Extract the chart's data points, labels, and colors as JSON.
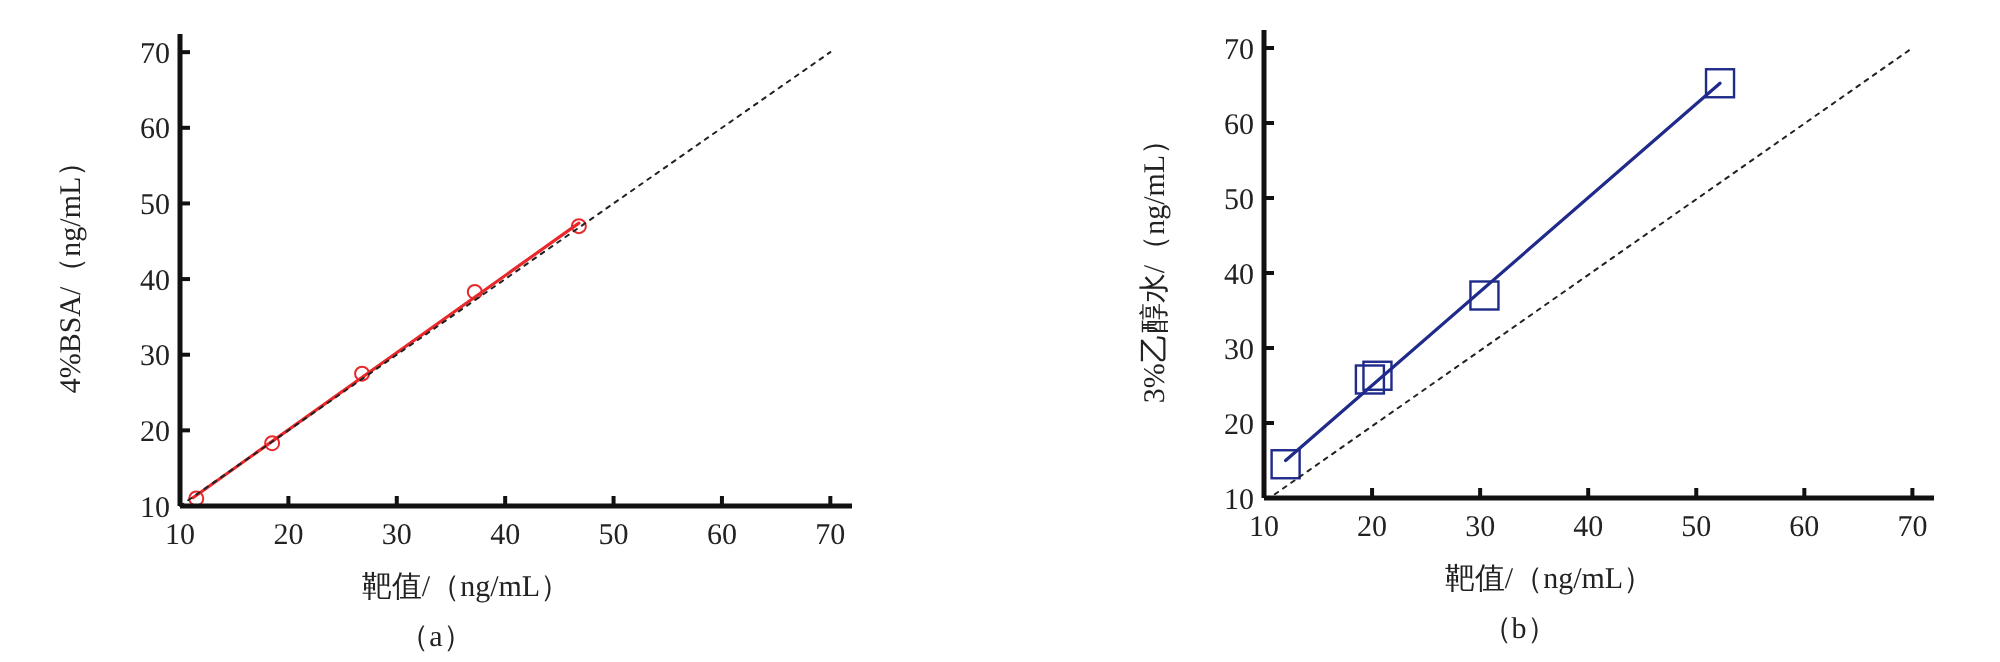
{
  "chart_data": [
    {
      "type": "scatter",
      "title": "（a）",
      "xlabel": "靶值/（ng/mL）",
      "ylabel": "4%BSA/（ng/mL）",
      "xlim": [
        10,
        72
      ],
      "ylim": [
        10,
        72.4
      ],
      "xticks": [
        10,
        20,
        30,
        40,
        50,
        60,
        70
      ],
      "yticks": [
        10,
        20,
        30,
        40,
        50,
        60,
        70
      ],
      "grid": false,
      "series": [
        {
          "color": "#e8282a",
          "marker": "circle",
          "x": [
            11.5,
            18.5,
            26.8,
            37.2,
            46.8
          ],
          "values": [
            11,
            18.3,
            27.5,
            38.3,
            47
          ]
        },
        {
          "type": "line",
          "color": "#e8282a",
          "line_style": "solid",
          "x": [
            11.2,
            46.8
          ],
          "values": [
            11.1,
            47.4
          ]
        },
        {
          "type": "line",
          "color": "#222222",
          "line_style": "dotted",
          "x": [
            10,
            70
          ],
          "values": [
            10,
            70
          ]
        }
      ]
    },
    {
      "type": "scatter",
      "title": "（b）",
      "xlabel": "靶值/（ng/mL）",
      "ylabel": "3%乙醇水/（ng/mL）",
      "xlim": [
        10,
        72
      ],
      "ylim": [
        10,
        72.4
      ],
      "xticks": [
        10,
        20,
        30,
        40,
        50,
        60,
        70
      ],
      "yticks": [
        10,
        20,
        30,
        40,
        50,
        60,
        70
      ],
      "grid": false,
      "series": [
        {
          "color": "#1f2a8a",
          "marker": "square",
          "x": [
            12,
            19.8,
            20.5,
            30.4,
            52.2
          ],
          "values": [
            14.5,
            25.8,
            26.3,
            37,
            65.3
          ]
        },
        {
          "type": "line",
          "color": "#1f2a8a",
          "line_style": "solid",
          "x": [
            12,
            52.2
          ],
          "values": [
            15,
            65.3
          ]
        },
        {
          "type": "line",
          "color": "#222222",
          "line_style": "dotted",
          "x": [
            11,
            70
          ],
          "values": [
            10.5,
            70
          ]
        }
      ]
    }
  ]
}
